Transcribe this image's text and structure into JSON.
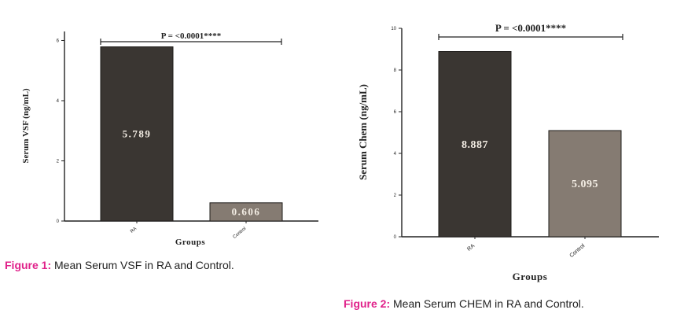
{
  "captions": [
    {
      "label": "Figure 1:",
      "text": " Mean Serum VSF in RA and Control."
    },
    {
      "label": "Figure 2:",
      "text": " Mean Serum CHEM in RA and Control."
    }
  ],
  "colors": {
    "ra_bar": "#3a3632",
    "control_bar": "#857b72",
    "caption_label": "#e0218a"
  },
  "chart_data": [
    {
      "type": "bar",
      "title": "",
      "xlabel": "Groups",
      "ylabel": "Serum VSF (ng/mL)",
      "categories": [
        "RA",
        "Control"
      ],
      "values": [
        5.789,
        0.606
      ],
      "value_labels": [
        "5.789",
        "0.606"
      ],
      "ylim": [
        0,
        6.3
      ],
      "yticks": [
        "0",
        "2",
        "4",
        "6"
      ],
      "annotation": "P = <0.0001****",
      "grid": false,
      "legend": "none"
    },
    {
      "type": "bar",
      "title": "",
      "xlabel": "Groups",
      "ylabel": "Serum Chem (ng/mL)",
      "categories": [
        "RA",
        "Control"
      ],
      "values": [
        8.887,
        5.095
      ],
      "value_labels": [
        "8.887",
        "5.095"
      ],
      "ylim": [
        0,
        10
      ],
      "yticks": [
        "0",
        "2",
        "4",
        "6",
        "8",
        "10"
      ],
      "annotation": "P = <0.0001****",
      "grid": false,
      "legend": "none"
    }
  ]
}
